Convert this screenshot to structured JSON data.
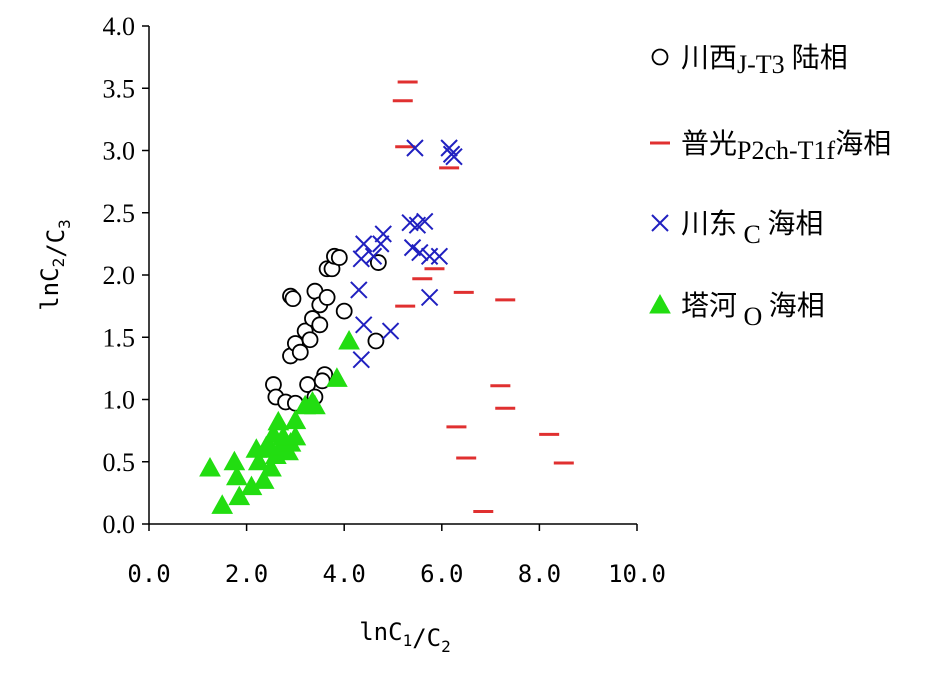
{
  "chart_data": {
    "type": "scatter",
    "xlim": [
      0,
      10
    ],
    "ylim": [
      0,
      4
    ],
    "x_ticks": [
      "0.0",
      "2.0",
      "4.0",
      "6.0",
      "8.0",
      "10.0"
    ],
    "y_ticks": [
      "0.0",
      "0.5",
      "1.0",
      "1.5",
      "2.0",
      "2.5",
      "3.0",
      "3.5",
      "4.0"
    ],
    "x_tick_values": [
      0,
      2,
      4,
      6,
      8,
      10
    ],
    "y_tick_values": [
      0,
      0.5,
      1,
      1.5,
      2,
      2.5,
      3,
      3.5,
      4
    ],
    "xlabel": "lnC1/C2",
    "ylabel": "lnC2/C3",
    "grid": false,
    "legend_position": "right",
    "series": [
      {
        "name": "川西J-T3 陆相",
        "legend_parts": [
          "川西",
          "J-T3",
          " 陆相"
        ],
        "marker": "circle",
        "color": "#000000",
        "points": [
          [
            2.55,
            1.12
          ],
          [
            2.6,
            1.02
          ],
          [
            2.8,
            0.98
          ],
          [
            3.0,
            0.97
          ],
          [
            3.25,
            1.12
          ],
          [
            3.4,
            1.02
          ],
          [
            2.9,
            1.35
          ],
          [
            3.0,
            1.45
          ],
          [
            3.1,
            1.38
          ],
          [
            3.2,
            1.55
          ],
          [
            3.3,
            1.48
          ],
          [
            3.35,
            1.65
          ],
          [
            3.5,
            1.6
          ],
          [
            2.9,
            1.83
          ],
          [
            2.95,
            1.81
          ],
          [
            3.4,
            1.87
          ],
          [
            3.5,
            1.76
          ],
          [
            3.65,
            1.82
          ],
          [
            3.65,
            2.05
          ],
          [
            3.75,
            2.05
          ],
          [
            3.8,
            2.15
          ],
          [
            3.9,
            2.14
          ],
          [
            4.0,
            1.71
          ],
          [
            3.6,
            1.2
          ],
          [
            3.55,
            1.15
          ],
          [
            4.7,
            2.1
          ],
          [
            4.65,
            1.47
          ]
        ]
      },
      {
        "name": "普光P2ch-T1f 海相",
        "legend_parts": [
          "普光",
          "P2ch-T1f",
          "海相"
        ],
        "marker": "dash",
        "color": "#e03030",
        "points": [
          [
            5.3,
            3.55
          ],
          [
            5.2,
            3.4
          ],
          [
            5.25,
            3.03
          ],
          [
            6.15,
            2.86
          ],
          [
            5.85,
            2.05
          ],
          [
            5.6,
            1.97
          ],
          [
            5.25,
            1.75
          ],
          [
            6.45,
            1.86
          ],
          [
            7.3,
            1.8
          ],
          [
            7.2,
            1.11
          ],
          [
            7.3,
            0.93
          ],
          [
            6.3,
            0.78
          ],
          [
            6.5,
            0.53
          ],
          [
            8.2,
            0.72
          ],
          [
            8.5,
            0.49
          ],
          [
            6.85,
            0.1
          ]
        ]
      },
      {
        "name": "川东 C 海相",
        "legend_parts": [
          "川东",
          " C ",
          "海相"
        ],
        "marker": "x",
        "color": "#2020c0",
        "points": [
          [
            5.45,
            3.02
          ],
          [
            6.15,
            3.02
          ],
          [
            6.2,
            2.97
          ],
          [
            6.25,
            2.95
          ],
          [
            5.35,
            2.42
          ],
          [
            5.5,
            2.4
          ],
          [
            5.65,
            2.43
          ],
          [
            4.8,
            2.33
          ],
          [
            4.75,
            2.25
          ],
          [
            4.4,
            2.25
          ],
          [
            4.35,
            2.13
          ],
          [
            4.6,
            2.15
          ],
          [
            5.4,
            2.22
          ],
          [
            5.55,
            2.18
          ],
          [
            5.75,
            2.15
          ],
          [
            5.95,
            2.15
          ],
          [
            5.75,
            1.82
          ],
          [
            4.3,
            1.88
          ],
          [
            4.4,
            1.6
          ],
          [
            4.95,
            1.55
          ],
          [
            4.35,
            1.32
          ]
        ]
      },
      {
        "name": "塔河 O 海相",
        "legend_parts": [
          "塔河",
          " O ",
          "海相"
        ],
        "marker": "triangle",
        "color": "#22dd11",
        "points": [
          [
            1.25,
            0.45
          ],
          [
            1.5,
            0.15
          ],
          [
            1.8,
            0.38
          ],
          [
            1.75,
            0.5
          ],
          [
            1.85,
            0.22
          ],
          [
            2.1,
            0.3
          ],
          [
            2.2,
            0.6
          ],
          [
            2.25,
            0.5
          ],
          [
            2.35,
            0.35
          ],
          [
            2.4,
            0.62
          ],
          [
            2.5,
            0.45
          ],
          [
            2.5,
            0.6
          ],
          [
            2.55,
            0.72
          ],
          [
            2.6,
            0.55
          ],
          [
            2.65,
            0.82
          ],
          [
            2.7,
            0.62
          ],
          [
            2.75,
            0.7
          ],
          [
            2.85,
            0.58
          ],
          [
            2.9,
            0.65
          ],
          [
            3.0,
            0.7
          ],
          [
            3.0,
            0.83
          ],
          [
            3.2,
            0.95
          ],
          [
            3.35,
            0.98
          ],
          [
            3.4,
            0.95
          ],
          [
            3.85,
            1.17
          ],
          [
            4.1,
            1.47
          ]
        ]
      }
    ]
  }
}
